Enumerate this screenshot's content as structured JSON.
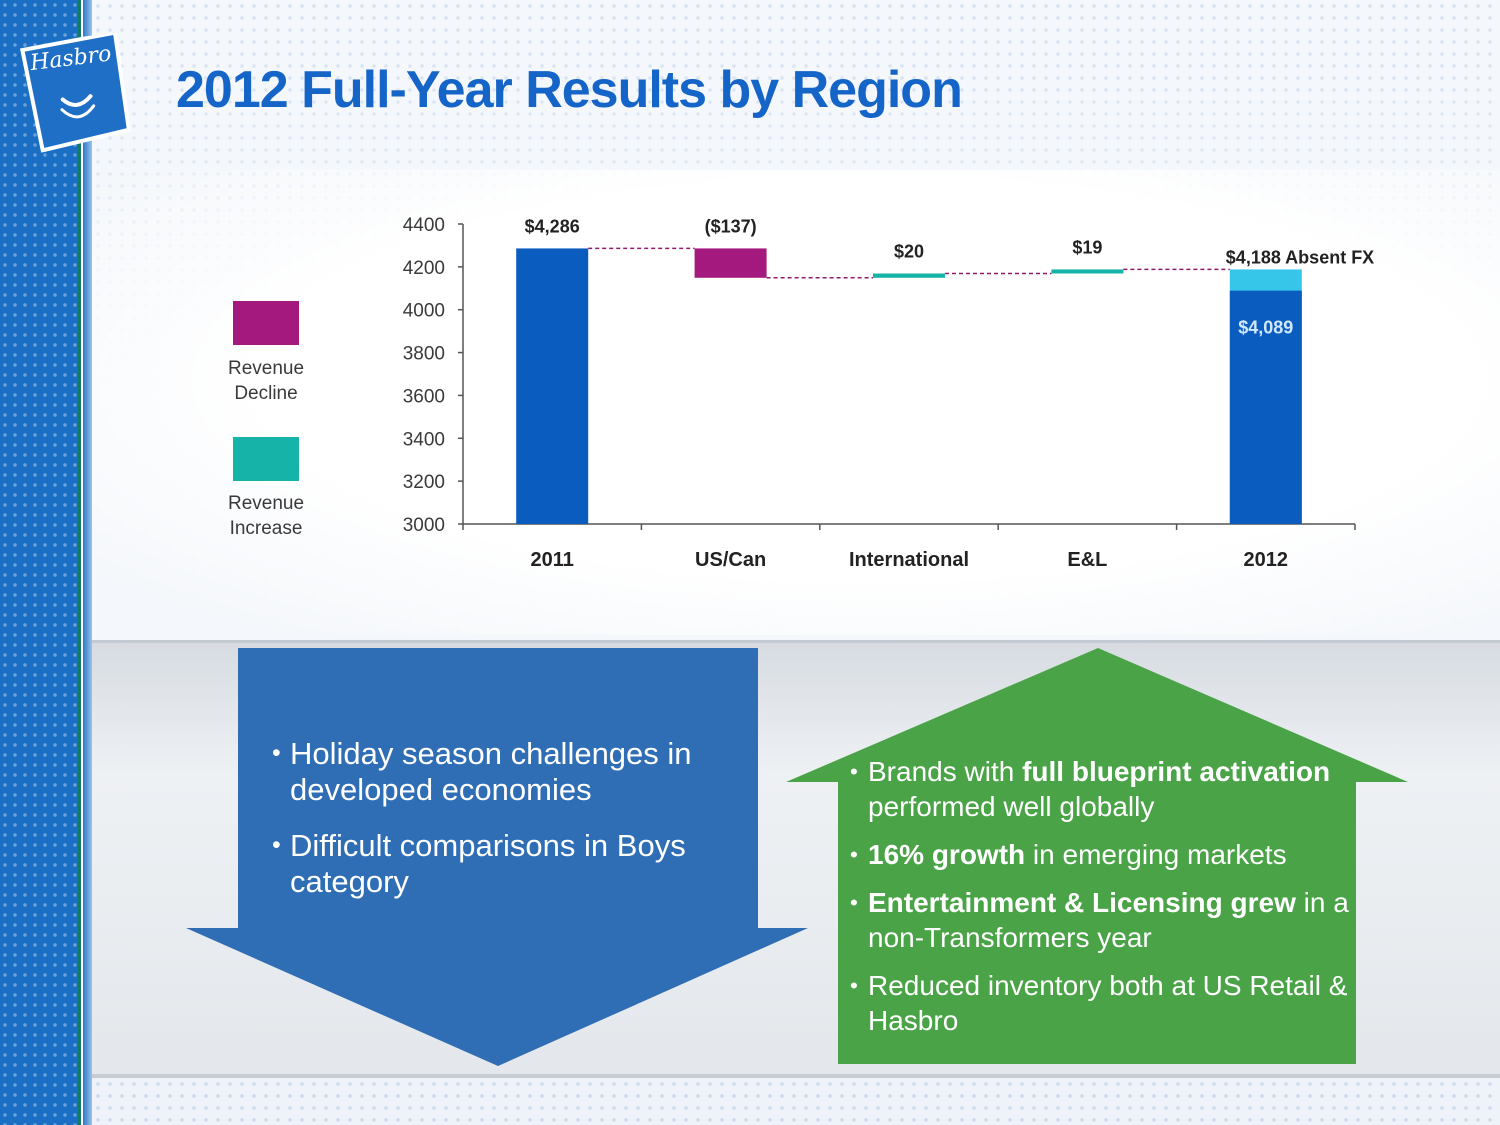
{
  "logo": {
    "text": "Hasbro"
  },
  "title": "2012 Full-Year Results by Region",
  "legend": [
    {
      "label": "Revenue\nDecline",
      "color": "#a3197e"
    },
    {
      "label": "Revenue\nIncrease",
      "color": "#16b3a9"
    }
  ],
  "colors": {
    "total_bar": "#0b5cbf",
    "decline": "#a3197e",
    "increase": "#16b3a9",
    "absent_fx": "#36c6ea",
    "connector": "#8f1b6c",
    "blue_arrow": "#2f6db4",
    "green_arrow": "#4aa447"
  },
  "chart_data": {
    "type": "bar",
    "subtype": "waterfall",
    "categories": [
      "2011",
      "US/Can",
      "International",
      "E&L",
      "2012"
    ],
    "ylim": [
      3000,
      4400
    ],
    "yticks": [
      4400,
      4200,
      4000,
      3800,
      3600,
      3400,
      3200,
      3000
    ],
    "bars": [
      {
        "category": "2011",
        "kind": "total",
        "start": 3000,
        "end": 4286,
        "label": "$4,286"
      },
      {
        "category": "US/Can",
        "kind": "decline",
        "start": 4286,
        "end": 4149,
        "label": "($137)"
      },
      {
        "category": "International",
        "kind": "increase",
        "start": 4149,
        "end": 4169,
        "label": "$20"
      },
      {
        "category": "E&L",
        "kind": "increase",
        "start": 4169,
        "end": 4188,
        "label": "$19"
      },
      {
        "category": "2012",
        "kind": "total",
        "start": 3000,
        "end": 4089,
        "label": "$4,089",
        "absent_fx": {
          "end": 4188,
          "label": "$4,188 Absent FX"
        }
      }
    ],
    "grid": false,
    "legend": "left"
  },
  "down_arrow": {
    "bullets": [
      "Holiday season challenges in developed economies",
      "Difficult comparisons in Boys category"
    ]
  },
  "up_arrow": {
    "bullets": [
      {
        "pre": "Brands with ",
        "bold": "full blueprint activation",
        "post": " performed well globally"
      },
      {
        "pre": "",
        "bold": "16% growth",
        "post": " in emerging markets"
      },
      {
        "pre": "",
        "bold": "Entertainment & Licensing grew",
        "post": " in a non-Transformers year"
      },
      {
        "pre": "Reduced inventory both at US Retail & Hasbro",
        "bold": "",
        "post": ""
      }
    ]
  }
}
